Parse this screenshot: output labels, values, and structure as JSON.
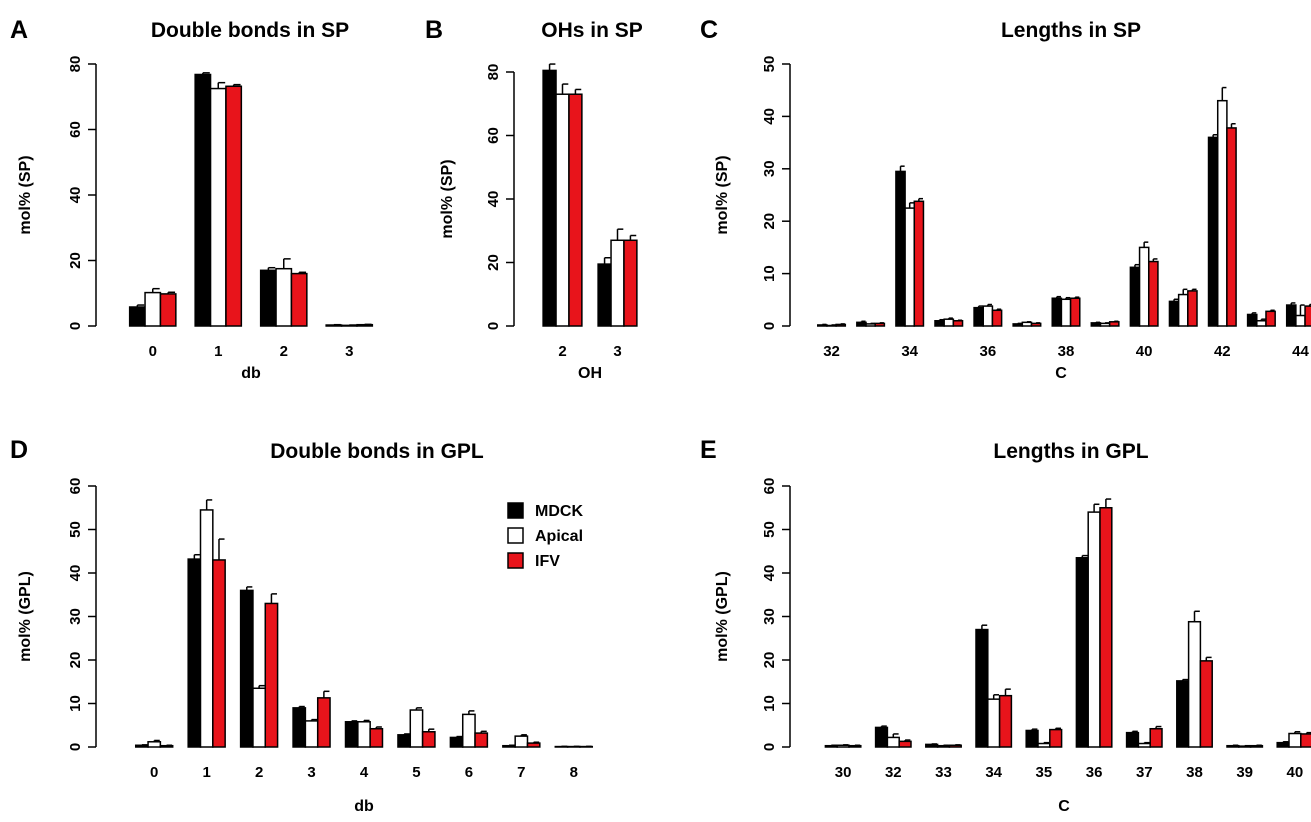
{
  "series_names": [
    "MDCK",
    "Apical",
    "IFV"
  ],
  "colors": {
    "MDCK": "#000000",
    "Apical": "#ffffff",
    "IFV": "#e8141b",
    "stroke": "#000000"
  },
  "legend": {
    "panel": "D",
    "position": "top-right",
    "entries": [
      "MDCK",
      "Apical",
      "IFV"
    ]
  },
  "chart_data": [
    {
      "panel": "A",
      "type": "bar",
      "title": "Double bonds in SP",
      "xlabel": "db",
      "ylabel": "mol% (SP)",
      "ylim": [
        0,
        80
      ],
      "yticks": [
        0,
        20,
        40,
        60,
        80
      ],
      "categories": [
        "0",
        "1",
        "2",
        "3"
      ],
      "tick_labels": [
        "0",
        "1",
        "2",
        "3"
      ],
      "series": [
        {
          "name": "MDCK",
          "values": [
            5.8,
            76.8,
            17.0,
            0.3
          ],
          "errors": [
            0.6,
            0.5,
            0.8,
            0.1
          ]
        },
        {
          "name": "Apical",
          "values": [
            10.2,
            72.5,
            17.5,
            0.2
          ],
          "errors": [
            1.2,
            1.8,
            3.0,
            0.1
          ]
        },
        {
          "name": "IFV",
          "values": [
            9.8,
            73.2,
            16.0,
            0.4
          ],
          "errors": [
            0.5,
            0.5,
            0.4,
            0.1
          ]
        }
      ]
    },
    {
      "panel": "B",
      "type": "bar",
      "title": "OHs in SP",
      "xlabel": "OH",
      "ylabel": "mol% (SP)",
      "ylim": [
        0,
        80
      ],
      "yticks": [
        0,
        20,
        40,
        60,
        80
      ],
      "categories": [
        "2",
        "3"
      ],
      "tick_labels": [
        "2",
        "3"
      ],
      "series": [
        {
          "name": "MDCK",
          "values": [
            80.5,
            19.5
          ],
          "errors": [
            2.0,
            2.0
          ]
        },
        {
          "name": "Apical",
          "values": [
            73.0,
            27.0
          ],
          "errors": [
            3.2,
            3.5
          ]
        },
        {
          "name": "IFV",
          "values": [
            73.0,
            27.0
          ],
          "errors": [
            1.5,
            1.5
          ]
        }
      ]
    },
    {
      "panel": "C",
      "type": "bar",
      "title": "Lengths in SP",
      "xlabel": "C",
      "ylabel": "mol% (SP)",
      "ylim": [
        0,
        50
      ],
      "yticks": [
        0,
        10,
        20,
        30,
        40,
        50
      ],
      "categories": [
        "32",
        "33",
        "34",
        "35",
        "36",
        "37",
        "38",
        "39",
        "40",
        "41",
        "42",
        "43",
        "44"
      ],
      "tick_labels": [
        "32",
        "",
        "34",
        "",
        "36",
        "",
        "38",
        "",
        "40",
        "",
        "42",
        "",
        "44"
      ],
      "series": [
        {
          "name": "MDCK",
          "values": [
            0.2,
            0.7,
            29.5,
            1.0,
            3.5,
            0.4,
            5.3,
            0.6,
            11.2,
            4.7,
            36.0,
            2.2,
            4.0
          ],
          "errors": [
            0.1,
            0.2,
            1.0,
            0.2,
            0.3,
            0.1,
            0.3,
            0.1,
            0.5,
            0.4,
            0.5,
            0.3,
            0.4
          ]
        },
        {
          "name": "Apical",
          "values": [
            0.1,
            0.4,
            22.5,
            1.3,
            3.8,
            0.7,
            5.1,
            0.5,
            15.0,
            6.0,
            43.0,
            1.0,
            2.0
          ],
          "errors": [
            0.1,
            0.1,
            1.0,
            0.2,
            0.3,
            0.1,
            0.3,
            0.1,
            1.0,
            1.0,
            2.5,
            0.3,
            2.0
          ]
        },
        {
          "name": "IFV",
          "values": [
            0.3,
            0.5,
            23.8,
            1.0,
            3.0,
            0.5,
            5.3,
            0.8,
            12.3,
            6.7,
            37.8,
            2.8,
            3.8
          ],
          "errors": [
            0.1,
            0.1,
            0.5,
            0.1,
            0.2,
            0.1,
            0.2,
            0.1,
            0.5,
            0.3,
            0.8,
            0.2,
            0.3
          ]
        }
      ]
    },
    {
      "panel": "D",
      "type": "bar",
      "title": "Double bonds in GPL",
      "xlabel": "db",
      "ylabel": "mol% (GPL)",
      "ylim": [
        0,
        60
      ],
      "yticks": [
        0,
        10,
        20,
        30,
        40,
        50,
        60
      ],
      "categories": [
        "0",
        "1",
        "2",
        "3",
        "4",
        "5",
        "6",
        "7",
        "8"
      ],
      "tick_labels": [
        "0",
        "1",
        "2",
        "3",
        "4",
        "5",
        "6",
        "7",
        "8"
      ],
      "series": [
        {
          "name": "MDCK",
          "values": [
            0.4,
            43.2,
            36.0,
            9.0,
            5.8,
            2.8,
            2.2,
            0.3,
            0.1
          ],
          "errors": [
            0.1,
            1.0,
            0.8,
            0.3,
            0.2,
            0.2,
            0.2,
            0.1,
            0.05
          ]
        },
        {
          "name": "Apical",
          "values": [
            1.2,
            54.5,
            13.5,
            6.0,
            5.8,
            8.5,
            7.5,
            2.5,
            0.1
          ],
          "errors": [
            0.3,
            2.3,
            0.6,
            0.3,
            0.3,
            0.5,
            0.8,
            0.3,
            0.05
          ]
        },
        {
          "name": "IFV",
          "values": [
            0.3,
            43.0,
            33.0,
            11.3,
            4.2,
            3.5,
            3.2,
            0.9,
            0.1
          ],
          "errors": [
            0.1,
            4.8,
            2.2,
            1.5,
            0.4,
            0.6,
            0.4,
            0.2,
            0.05
          ]
        }
      ]
    },
    {
      "panel": "E",
      "type": "bar",
      "title": "Lengths in GPL",
      "xlabel": "C",
      "ylabel": "mol% (GPL)",
      "ylim": [
        0,
        60
      ],
      "yticks": [
        0,
        10,
        20,
        30,
        40,
        50,
        60
      ],
      "categories": [
        "30",
        "32",
        "33",
        "34",
        "35",
        "36",
        "37",
        "38",
        "39",
        "40"
      ],
      "tick_labels": [
        "30",
        "32",
        "33",
        "34",
        "35",
        "36",
        "37",
        "38",
        "39",
        "40"
      ],
      "series": [
        {
          "name": "MDCK",
          "values": [
            0.3,
            4.5,
            0.6,
            27.0,
            3.8,
            43.5,
            3.3,
            15.2,
            0.3,
            1.0
          ],
          "errors": [
            0.1,
            0.3,
            0.1,
            1.0,
            0.3,
            0.5,
            0.3,
            0.3,
            0.1,
            0.2
          ]
        },
        {
          "name": "Apical",
          "values": [
            0.4,
            2.2,
            0.3,
            11.0,
            0.8,
            54.0,
            0.8,
            28.8,
            0.2,
            3.1
          ],
          "errors": [
            0.1,
            0.8,
            0.1,
            1.0,
            0.2,
            1.8,
            0.2,
            2.4,
            0.1,
            0.4
          ]
        },
        {
          "name": "IFV",
          "values": [
            0.3,
            1.3,
            0.4,
            11.8,
            4.0,
            55.0,
            4.2,
            19.8,
            0.3,
            3.0
          ],
          "errors": [
            0.1,
            0.3,
            0.1,
            1.5,
            0.3,
            2.0,
            0.5,
            0.8,
            0.1,
            0.3
          ]
        }
      ]
    }
  ]
}
